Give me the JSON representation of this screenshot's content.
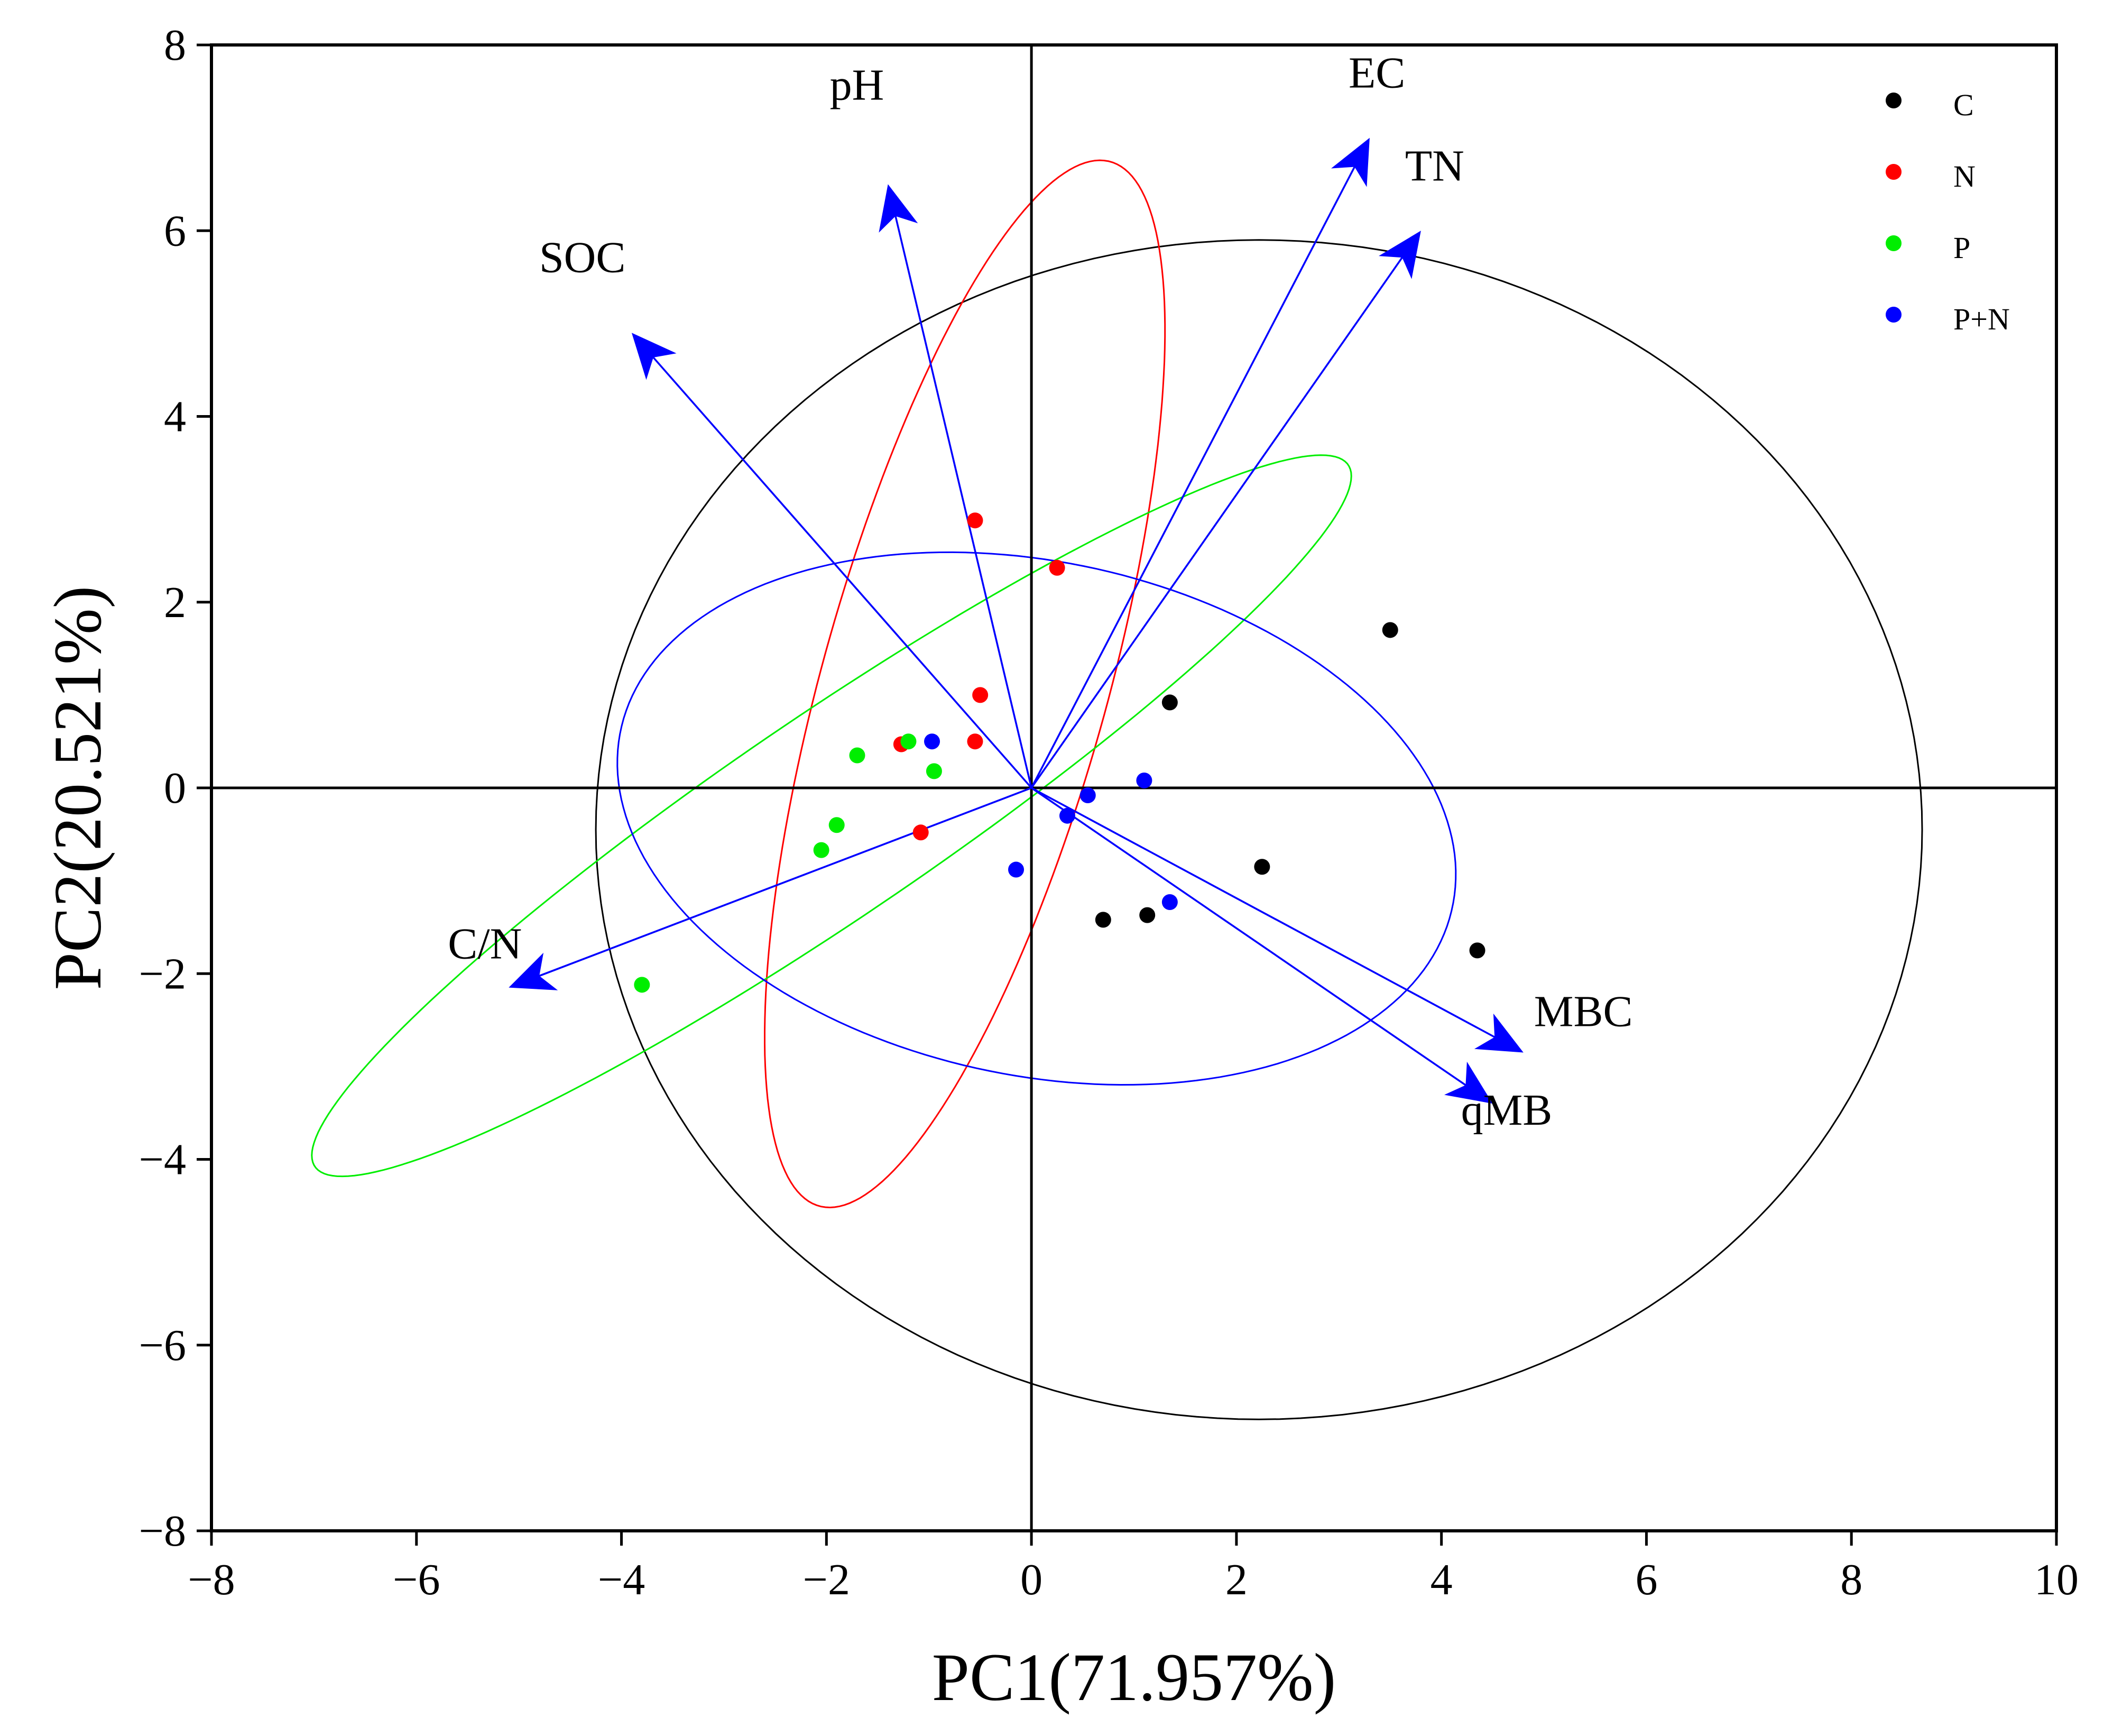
{
  "chart_data": {
    "type": "scatter",
    "subtype": "PCA biplot",
    "title": "",
    "xlabel": "PC1(71.957%)",
    "ylabel": "PC2(20.521%)",
    "xlim": [
      -8,
      10
    ],
    "ylim": [
      -8,
      8
    ],
    "xticks": [
      -8,
      -6,
      -4,
      -2,
      0,
      2,
      4,
      6,
      8,
      10
    ],
    "yticks": [
      -8,
      -6,
      -4,
      -2,
      0,
      2,
      4,
      6,
      8
    ],
    "legend_position": "top-right",
    "series": [
      {
        "name": "C",
        "color": "#000000",
        "points": [
          [
            3.5,
            1.7
          ],
          [
            1.35,
            0.92
          ],
          [
            2.25,
            -0.85
          ],
          [
            4.35,
            -1.75
          ],
          [
            0.7,
            -1.42
          ],
          [
            1.13,
            -1.37
          ]
        ]
      },
      {
        "name": "N",
        "color": "#ff0000",
        "points": [
          [
            -0.55,
            2.88
          ],
          [
            0.25,
            2.37
          ],
          [
            -0.5,
            1.0
          ],
          [
            -1.27,
            0.47
          ],
          [
            -0.55,
            0.5
          ],
          [
            -1.08,
            -0.48
          ]
        ]
      },
      {
        "name": "P",
        "color": "#00ee00",
        "points": [
          [
            -1.7,
            0.35
          ],
          [
            -1.2,
            0.5
          ],
          [
            -0.95,
            0.18
          ],
          [
            -1.9,
            -0.4
          ],
          [
            -2.05,
            -0.67
          ],
          [
            -3.8,
            -2.12
          ]
        ]
      },
      {
        "name": "P+N",
        "color": "#0000ff",
        "points": [
          [
            -0.97,
            0.5
          ],
          [
            1.1,
            0.08
          ],
          [
            0.55,
            -0.08
          ],
          [
            0.35,
            -0.3
          ],
          [
            -0.15,
            -0.88
          ],
          [
            1.35,
            -1.23
          ]
        ]
      }
    ],
    "ellipses": [
      {
        "group": "C",
        "center": [
          2.22,
          -0.45
        ],
        "semi_axes": [
          6.47,
          6.35
        ],
        "angle_deg": 0
      },
      {
        "group": "N",
        "center": [
          -0.65,
          1.12
        ],
        "semi_axes": [
          5.8,
          1.4
        ],
        "angle_deg": 76
      },
      {
        "group": "P",
        "center": [
          -1.95,
          -0.3
        ],
        "semi_axes": [
          6.3,
          1.05
        ],
        "angle_deg": 37
      },
      {
        "group": "P+N",
        "center": [
          0.05,
          -0.33
        ],
        "semi_axes": [
          4.17,
          2.75
        ],
        "angle_deg": -15
      }
    ],
    "loadings": [
      {
        "name": "EC",
        "x": 3.3,
        "y": 7.0
      },
      {
        "name": "TN",
        "x": 3.8,
        "y": 6.0
      },
      {
        "name": "pH",
        "x": -1.4,
        "y": 6.5
      },
      {
        "name": "SOC",
        "x": -3.9,
        "y": 4.9
      },
      {
        "name": "C/N",
        "x": -5.1,
        "y": -2.15
      },
      {
        "name": "MBC",
        "x": 4.8,
        "y": -2.85
      },
      {
        "name": "qMB",
        "x": 4.5,
        "y": -3.4
      }
    ]
  }
}
